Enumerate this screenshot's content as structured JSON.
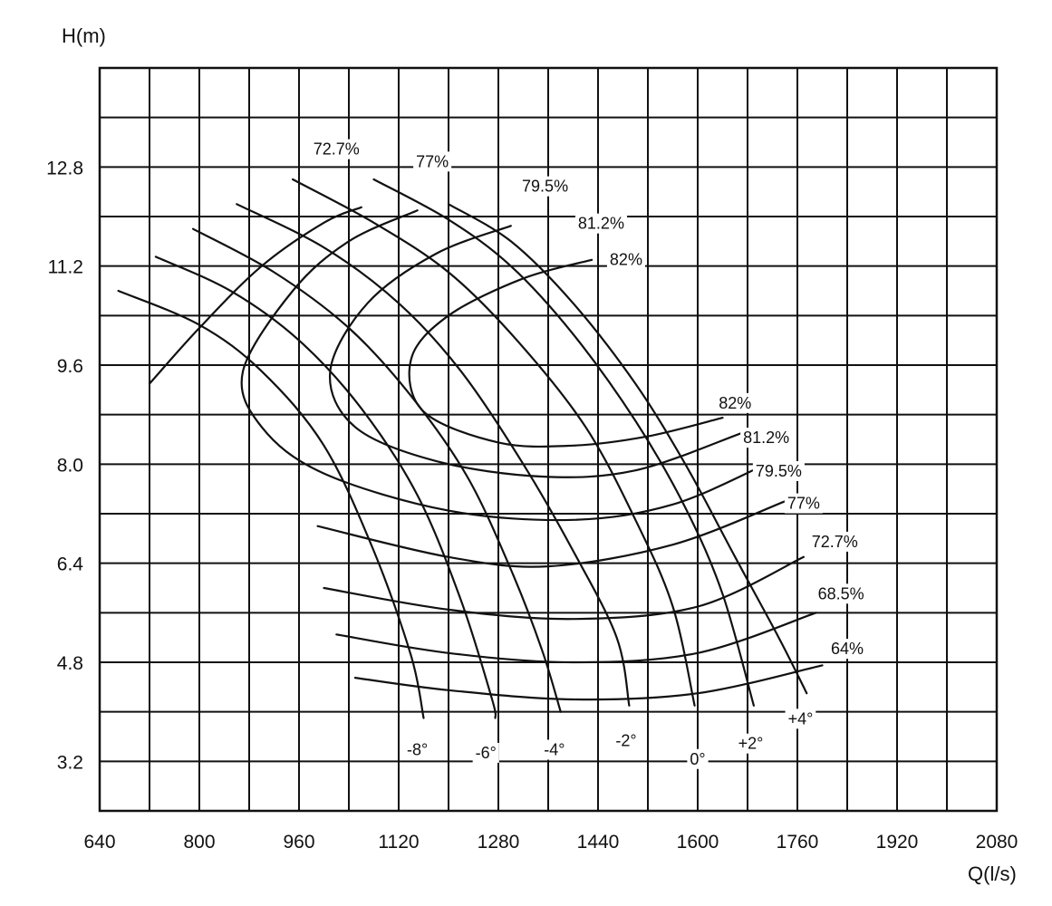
{
  "chart_data": {
    "type": "line",
    "title": "",
    "xlabel": "Q(l/s)",
    "ylabel": "H(m)",
    "xlim": [
      640,
      2080
    ],
    "ylim": [
      2.4,
      14.4
    ],
    "x_ticks": [
      640,
      800,
      960,
      1120,
      1280,
      1440,
      1600,
      1760,
      1920,
      2080
    ],
    "x_tick_labels": [
      "640",
      "800",
      "960",
      "1120",
      "1280",
      "1440",
      "1600",
      "1760",
      "1920",
      "2080"
    ],
    "y_ticks": [
      3.2,
      4.8,
      6.4,
      8.0,
      9.6,
      11.2,
      12.8
    ],
    "y_tick_labels": [
      "3.2",
      "4.8",
      "6.4",
      "8.0",
      "9.6",
      "11.2",
      "12.8"
    ],
    "grid": true,
    "head_curves": [
      {
        "name": "-8°",
        "points": [
          [
            670,
            10.8
          ],
          [
            800,
            10.25
          ],
          [
            900,
            9.5
          ],
          [
            1000,
            8.3
          ],
          [
            1080,
            6.6
          ],
          [
            1140,
            4.9
          ],
          [
            1160,
            3.9
          ]
        ]
      },
      {
        "name": "-6°",
        "points": [
          [
            730,
            11.35
          ],
          [
            850,
            10.8
          ],
          [
            960,
            10.0
          ],
          [
            1060,
            8.9
          ],
          [
            1150,
            7.5
          ],
          [
            1220,
            5.8
          ],
          [
            1270,
            4.2
          ],
          [
            1275,
            3.9
          ]
        ]
      },
      {
        "name": "-4°",
        "points": [
          [
            790,
            11.8
          ],
          [
            920,
            11.1
          ],
          [
            1040,
            10.2
          ],
          [
            1140,
            9.1
          ],
          [
            1230,
            7.8
          ],
          [
            1300,
            6.3
          ],
          [
            1350,
            5.0
          ],
          [
            1380,
            4.0
          ]
        ]
      },
      {
        "name": "-2°",
        "points": [
          [
            860,
            12.2
          ],
          [
            1000,
            11.5
          ],
          [
            1120,
            10.6
          ],
          [
            1220,
            9.5
          ],
          [
            1320,
            8.0
          ],
          [
            1400,
            6.6
          ],
          [
            1470,
            5.2
          ],
          [
            1490,
            4.1
          ]
        ]
      },
      {
        "name": "0°",
        "points": [
          [
            950,
            12.6
          ],
          [
            1080,
            11.9
          ],
          [
            1200,
            11.1
          ],
          [
            1310,
            10.0
          ],
          [
            1420,
            8.6
          ],
          [
            1500,
            7.1
          ],
          [
            1560,
            5.7
          ],
          [
            1595,
            4.1
          ]
        ]
      },
      {
        "name": "+2°",
        "points": [
          [
            1080,
            12.6
          ],
          [
            1200,
            11.95
          ],
          [
            1300,
            11.2
          ],
          [
            1400,
            10.1
          ],
          [
            1500,
            8.7
          ],
          [
            1580,
            7.3
          ],
          [
            1640,
            5.9
          ],
          [
            1690,
            4.1
          ]
        ]
      },
      {
        "name": "+4°",
        "points": [
          [
            1200,
            12.2
          ],
          [
            1300,
            11.6
          ],
          [
            1400,
            10.6
          ],
          [
            1500,
            9.3
          ],
          [
            1580,
            8.0
          ],
          [
            1660,
            6.5
          ],
          [
            1730,
            5.2
          ],
          [
            1775,
            4.3
          ]
        ]
      }
    ],
    "head_labels": [
      "-8°",
      "-6°",
      "-4°",
      "-2°",
      "0°",
      "+2°",
      "+4°"
    ],
    "efficiency_curves": [
      {
        "name": "64%",
        "points": [
          [
            1050,
            4.55
          ],
          [
            1200,
            4.35
          ],
          [
            1400,
            4.2
          ],
          [
            1600,
            4.3
          ],
          [
            1800,
            4.75
          ]
        ]
      },
      {
        "name": "68.5%",
        "points": [
          [
            1020,
            5.25
          ],
          [
            1200,
            4.95
          ],
          [
            1400,
            4.8
          ],
          [
            1600,
            4.95
          ],
          [
            1790,
            5.6
          ]
        ]
      },
      {
        "name": "72.7%",
        "points": [
          [
            1000,
            6.0
          ],
          [
            1200,
            5.65
          ],
          [
            1400,
            5.5
          ],
          [
            1600,
            5.7
          ],
          [
            1770,
            6.5
          ]
        ]
      },
      {
        "name": "77%",
        "points": [
          [
            720,
            9.3
          ],
          [
            800,
            10.2
          ],
          [
            900,
            11.2
          ],
          [
            1000,
            11.9
          ],
          [
            1060,
            12.15
          ]
        ]
      },
      {
        "name": "77%",
        "points": [
          [
            990,
            7.0
          ],
          [
            1200,
            6.5
          ],
          [
            1360,
            6.35
          ],
          [
            1560,
            6.7
          ],
          [
            1740,
            7.4
          ]
        ]
      },
      {
        "name": "79.5%",
        "points": [
          [
            1150,
            12.1
          ],
          [
            1040,
            11.6
          ],
          [
            950,
            10.8
          ],
          [
            870,
            9.5
          ],
          [
            900,
            8.6
          ],
          [
            1000,
            7.85
          ],
          [
            1200,
            7.25
          ],
          [
            1400,
            7.1
          ],
          [
            1560,
            7.35
          ],
          [
            1710,
            8.0
          ]
        ]
      },
      {
        "name": "81.2%",
        "points": [
          [
            1300,
            11.85
          ],
          [
            1180,
            11.4
          ],
          [
            1070,
            10.6
          ],
          [
            1010,
            9.5
          ],
          [
            1050,
            8.6
          ],
          [
            1180,
            8.05
          ],
          [
            1350,
            7.8
          ],
          [
            1500,
            7.9
          ],
          [
            1670,
            8.5
          ]
        ]
      },
      {
        "name": "82%",
        "points": [
          [
            1430,
            11.3
          ],
          [
            1320,
            11.0
          ],
          [
            1200,
            10.4
          ],
          [
            1140,
            9.7
          ],
          [
            1160,
            8.85
          ],
          [
            1280,
            8.35
          ],
          [
            1400,
            8.3
          ],
          [
            1520,
            8.45
          ],
          [
            1640,
            8.75
          ]
        ]
      }
    ],
    "efficiency_labels": [
      {
        "text": "72.7%",
        "at": [
          1020,
          13.0
        ]
      },
      {
        "text": "77%",
        "at": [
          1174,
          12.8
        ]
      },
      {
        "text": "79.5%",
        "at": [
          1355,
          12.4
        ]
      },
      {
        "text": "81.2%",
        "at": [
          1445,
          11.8
        ]
      },
      {
        "text": "82%",
        "at": [
          1485,
          11.22
        ]
      },
      {
        "text": "82%",
        "at": [
          1660,
          8.9
        ]
      },
      {
        "text": "81.2%",
        "at": [
          1710,
          8.34
        ]
      },
      {
        "text": "79.5%",
        "at": [
          1730,
          7.8
        ]
      },
      {
        "text": "77%",
        "at": [
          1770,
          7.28
        ]
      },
      {
        "text": "72.7%",
        "at": [
          1820,
          6.66
        ]
      },
      {
        "text": "68.5%",
        "at": [
          1830,
          5.82
        ]
      },
      {
        "text": "64%",
        "at": [
          1840,
          4.93
        ]
      }
    ],
    "head_label_positions": [
      {
        "text": "-8°",
        "at": [
          1150,
          3.3
        ]
      },
      {
        "text": "-6°",
        "at": [
          1260,
          3.25
        ]
      },
      {
        "text": "-4°",
        "at": [
          1370,
          3.3
        ]
      },
      {
        "text": "-2°",
        "at": [
          1485,
          3.45
        ]
      },
      {
        "text": "0°",
        "at": [
          1600,
          3.15
        ]
      },
      {
        "text": "+2°",
        "at": [
          1685,
          3.4
        ]
      },
      {
        "text": "+4°",
        "at": [
          1765,
          3.8
        ]
      }
    ]
  }
}
